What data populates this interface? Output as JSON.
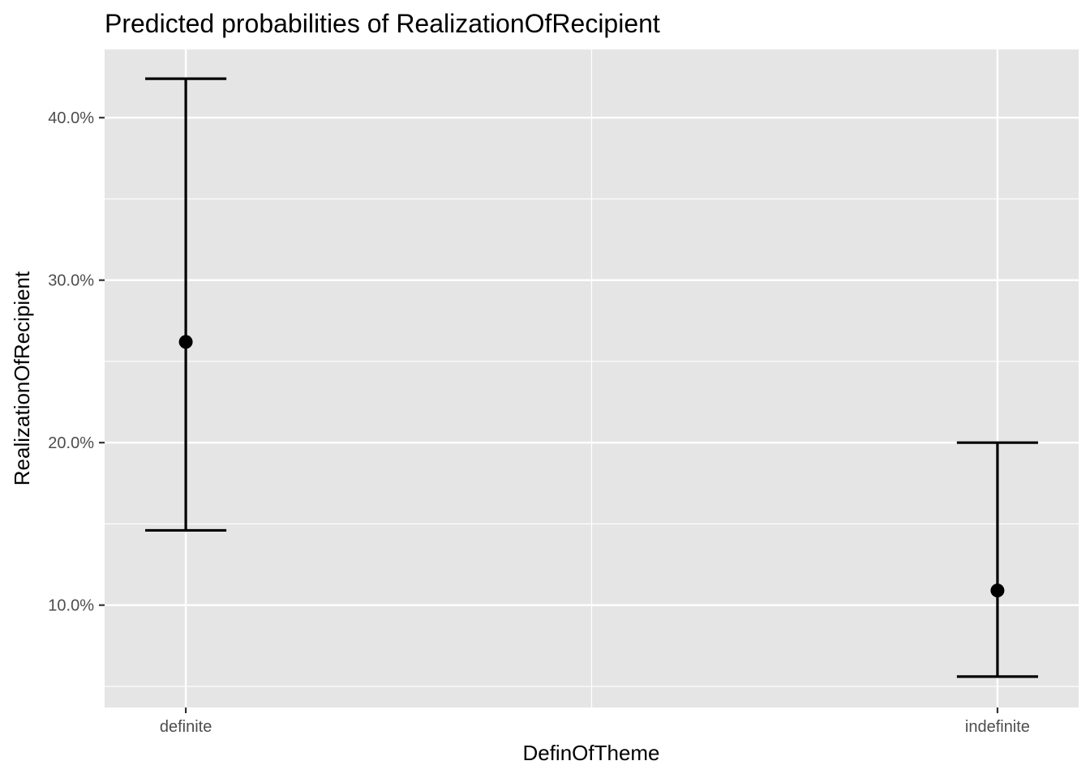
{
  "chart_data": {
    "type": "errorbar",
    "title": "Predicted probabilities of RealizationOfRecipient",
    "xlabel": "DefinOfTheme",
    "ylabel": "RealizationOfRecipient",
    "categories": [
      "definite",
      "indefinite"
    ],
    "points": [
      {
        "category": "definite",
        "estimate": 0.262,
        "lower": 0.146,
        "upper": 0.424
      },
      {
        "category": "indefinite",
        "estimate": 0.109,
        "lower": 0.056,
        "upper": 0.2
      }
    ],
    "y_ticks": [
      {
        "value": 0.1,
        "label": "10.0%"
      },
      {
        "value": 0.2,
        "label": "20.0%"
      },
      {
        "value": 0.3,
        "label": "30.0%"
      },
      {
        "value": 0.4,
        "label": "40.0%"
      }
    ],
    "ylim": [
      0.037,
      0.442
    ],
    "grid": true,
    "colors": {
      "panel_background": "#e5e5e5",
      "grid": "#ffffff",
      "marks": "#000000",
      "tick_labels": "#4d4d4d"
    }
  }
}
